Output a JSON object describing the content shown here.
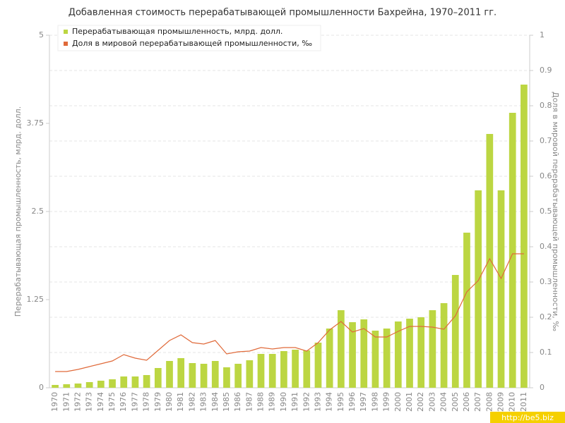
{
  "chart_data": {
    "type": "bar_line",
    "title": "Добавленная стоимость перерабатывающей промышленности Бахрейна, 1970–2011 гг.",
    "y_label": "Перерабатывающая промышленность, млрд. долл.",
    "y2_label": "Доля в мировой перерабатывающей промышленности, ‰",
    "watermark": "http://be5.biz",
    "categories": [
      "1970",
      "1971",
      "1972",
      "1973",
      "1974",
      "1975",
      "1976",
      "1977",
      "1978",
      "1979",
      "1980",
      "1981",
      "1982",
      "1983",
      "1984",
      "1985",
      "1986",
      "1987",
      "1988",
      "1989",
      "1990",
      "1991",
      "1992",
      "1993",
      "1994",
      "1995",
      "1996",
      "1997",
      "1998",
      "1999",
      "2000",
      "2001",
      "2002",
      "2003",
      "2004",
      "2005",
      "2006",
      "2007",
      "2008",
      "2009",
      "2010",
      "2011"
    ],
    "series": [
      {
        "name": "Перерабатывающая промышленность, млрд. долл.",
        "type": "bar",
        "color": "#bcd642",
        "values": [
          0.04,
          0.05,
          0.06,
          0.08,
          0.1,
          0.12,
          0.16,
          0.16,
          0.18,
          0.28,
          0.38,
          0.42,
          0.35,
          0.34,
          0.38,
          0.29,
          0.34,
          0.39,
          0.48,
          0.48,
          0.52,
          0.54,
          0.53,
          0.64,
          0.84,
          1.1,
          0.93,
          0.97,
          0.81,
          0.84,
          0.94,
          0.98,
          1.0,
          1.1,
          1.2,
          1.6,
          2.2,
          2.8,
          3.6,
          2.8,
          3.9,
          4.3
        ]
      },
      {
        "name": "Доля в мировой перерабатывающей промышленности, ‰",
        "type": "line",
        "axis": "y2",
        "color": "#e06a3a",
        "values": [
          0.046,
          0.046,
          0.052,
          0.06,
          0.068,
          0.076,
          0.094,
          0.084,
          0.078,
          0.106,
          0.134,
          0.15,
          0.128,
          0.124,
          0.134,
          0.096,
          0.102,
          0.104,
          0.114,
          0.11,
          0.114,
          0.114,
          0.104,
          0.128,
          0.164,
          0.188,
          0.158,
          0.168,
          0.144,
          0.144,
          0.16,
          0.174,
          0.174,
          0.172,
          0.166,
          0.204,
          0.272,
          0.304,
          0.366,
          0.31,
          0.38,
          0.38
        ]
      }
    ],
    "ylim": [
      0,
      5
    ],
    "yticks": [
      0,
      1.25,
      2.5,
      3.75,
      5
    ],
    "y2lim": [
      0,
      1
    ],
    "y2ticks": [
      0,
      0.1,
      0.2,
      0.3,
      0.4,
      0.5,
      0.6,
      0.7,
      0.8,
      0.9,
      1
    ],
    "grid": true,
    "legend": "top-left"
  }
}
